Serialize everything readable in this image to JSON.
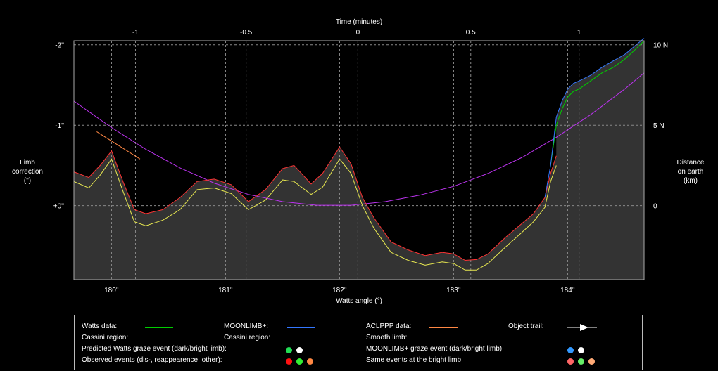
{
  "chart_data": {
    "type": "line",
    "xlabel": "Watts angle (°)",
    "x_top_label": "Time (minutes)",
    "ylabel_left": [
      "Limb",
      "correction",
      "(\")"
    ],
    "ylabel_right": [
      "Distance",
      "on earth",
      "(km)"
    ],
    "xlim": [
      179.67,
      184.67
    ],
    "ylim": [
      0.92,
      -2.05
    ],
    "x_ticks": [
      {
        "v": 180,
        "label": "180°"
      },
      {
        "v": 181,
        "label": "181°"
      },
      {
        "v": 182,
        "label": "182°"
      },
      {
        "v": 183,
        "label": "183°"
      },
      {
        "v": 184,
        "label": "184°"
      }
    ],
    "y_ticks": [
      {
        "v": -2,
        "label": "-2''"
      },
      {
        "v": -1,
        "label": "-1''"
      },
      {
        "v": 0,
        "label": "+0''"
      }
    ],
    "top_ticks": [
      {
        "x": 180.21,
        "label": "-1"
      },
      {
        "x": 181.18,
        "label": "-0.5"
      },
      {
        "x": 182.16,
        "label": "0"
      },
      {
        "x": 183.15,
        "label": "0.5"
      },
      {
        "x": 184.1,
        "label": "1"
      }
    ],
    "right_ticks": [
      {
        "v": -2,
        "label": "10 N"
      },
      {
        "v": -1,
        "label": "5 N"
      },
      {
        "v": 0,
        "label": "0"
      }
    ],
    "colors": {
      "plot_bg": "#333333",
      "watts": "#00cc00",
      "cassini": "#ff3333",
      "cassini_region": "#e8e850",
      "moonlimb": "#3377ff",
      "aclppp": "#ff8844",
      "smooth": "#bb33ee",
      "trail": "#ffffff",
      "profile_fill": "#000000"
    },
    "series": [
      {
        "key": "cassini",
        "x": [
          179.67,
          179.8,
          179.9,
          180.0,
          180.1,
          180.2,
          180.3,
          180.45,
          180.6,
          180.75,
          180.9,
          181.05,
          181.2,
          181.35,
          181.5,
          181.6,
          181.75,
          181.85,
          182.0,
          182.1,
          182.2,
          182.3,
          182.45,
          182.6,
          182.75,
          182.9,
          183.0,
          183.1,
          183.2,
          183.3,
          183.45,
          183.6,
          183.7,
          183.8,
          183.85,
          183.9
        ],
        "y": [
          -0.42,
          -0.35,
          -0.5,
          -0.68,
          -0.3,
          0.05,
          0.1,
          0.05,
          -0.1,
          -0.3,
          -0.33,
          -0.26,
          -0.05,
          -0.2,
          -0.46,
          -0.5,
          -0.27,
          -0.4,
          -0.73,
          -0.52,
          -0.1,
          0.15,
          0.45,
          0.55,
          0.62,
          0.58,
          0.6,
          0.68,
          0.67,
          0.6,
          0.4,
          0.22,
          0.1,
          -0.1,
          -0.4,
          -0.62
        ]
      },
      {
        "key": "cassini_region",
        "x": [
          179.67,
          179.8,
          179.9,
          180.0,
          180.1,
          180.2,
          180.3,
          180.45,
          180.6,
          180.75,
          180.9,
          181.05,
          181.2,
          181.35,
          181.5,
          181.6,
          181.75,
          181.85,
          182.0,
          182.1,
          182.2,
          182.3,
          182.45,
          182.6,
          182.75,
          182.9,
          183.0,
          183.1,
          183.2,
          183.3,
          183.45,
          183.6,
          183.7,
          183.8,
          183.85,
          183.9
        ],
        "y": [
          -0.3,
          -0.22,
          -0.38,
          -0.58,
          -0.18,
          0.2,
          0.25,
          0.18,
          0.05,
          -0.2,
          -0.22,
          -0.15,
          0.05,
          -0.07,
          -0.32,
          -0.3,
          -0.14,
          -0.23,
          -0.58,
          -0.4,
          0.0,
          0.28,
          0.58,
          0.68,
          0.74,
          0.7,
          0.72,
          0.8,
          0.8,
          0.72,
          0.52,
          0.33,
          0.2,
          0.02,
          -0.3,
          -0.5
        ]
      },
      {
        "key": "watts",
        "x": [
          183.85,
          183.9,
          183.95,
          184.0,
          184.05,
          184.1,
          184.2,
          184.3,
          184.4,
          184.5,
          184.6,
          184.67
        ],
        "y": [
          -0.5,
          -1.0,
          -1.2,
          -1.35,
          -1.42,
          -1.45,
          -1.55,
          -1.65,
          -1.72,
          -1.82,
          -1.95,
          -2.05
        ]
      },
      {
        "key": "moonlimb",
        "x": [
          183.8,
          183.85,
          183.9,
          183.95,
          184.0,
          184.05,
          184.1,
          184.2,
          184.3,
          184.4,
          184.5,
          184.6,
          184.67
        ],
        "y": [
          -0.1,
          -0.5,
          -1.1,
          -1.3,
          -1.45,
          -1.52,
          -1.55,
          -1.62,
          -1.72,
          -1.8,
          -1.88,
          -2.0,
          -2.08
        ]
      },
      {
        "key": "smooth",
        "x": [
          179.67,
          180.0,
          180.3,
          180.6,
          180.9,
          181.2,
          181.5,
          181.8,
          182.1,
          182.4,
          182.7,
          183.0,
          183.3,
          183.6,
          183.9,
          184.2,
          184.5,
          184.67
        ],
        "y": [
          -1.3,
          -0.97,
          -0.7,
          -0.47,
          -0.28,
          -0.14,
          -0.05,
          -0.005,
          -0.005,
          -0.05,
          -0.13,
          -0.24,
          -0.4,
          -0.6,
          -0.85,
          -1.13,
          -1.45,
          -1.65
        ]
      },
      {
        "key": "aclppp",
        "x": [
          179.87,
          180.25
        ],
        "y": [
          -0.92,
          -0.58
        ]
      }
    ],
    "legend": {
      "watts": "Watts data:",
      "cassini": "Cassini region:",
      "moonlimb": "MOONLIMB+:",
      "cassini_region": "Cassini region:",
      "aclppp": "ACLPPP data:",
      "smooth": "Smooth limb:",
      "trail": "Object trail:",
      "pred_watts": "Predicted Watts graze event (dark/bright limb):",
      "pred_moonlimb": "MOONLIMB+ graze event (dark/bright limb):",
      "observed": "Observed events (dis-, reappearence, other):",
      "same_bright": "Same events at the bright limb:"
    },
    "event_dots": {
      "pred_watts": [
        "#22dd55",
        "#ffffff"
      ],
      "pred_moonlimb": [
        "#3399ff",
        "#ffffff"
      ],
      "observed": [
        "#ff1111",
        "#33ee33",
        "#ff8844"
      ],
      "same_bright": [
        "#ff6666",
        "#66ee66",
        "#ffaa77"
      ]
    }
  }
}
